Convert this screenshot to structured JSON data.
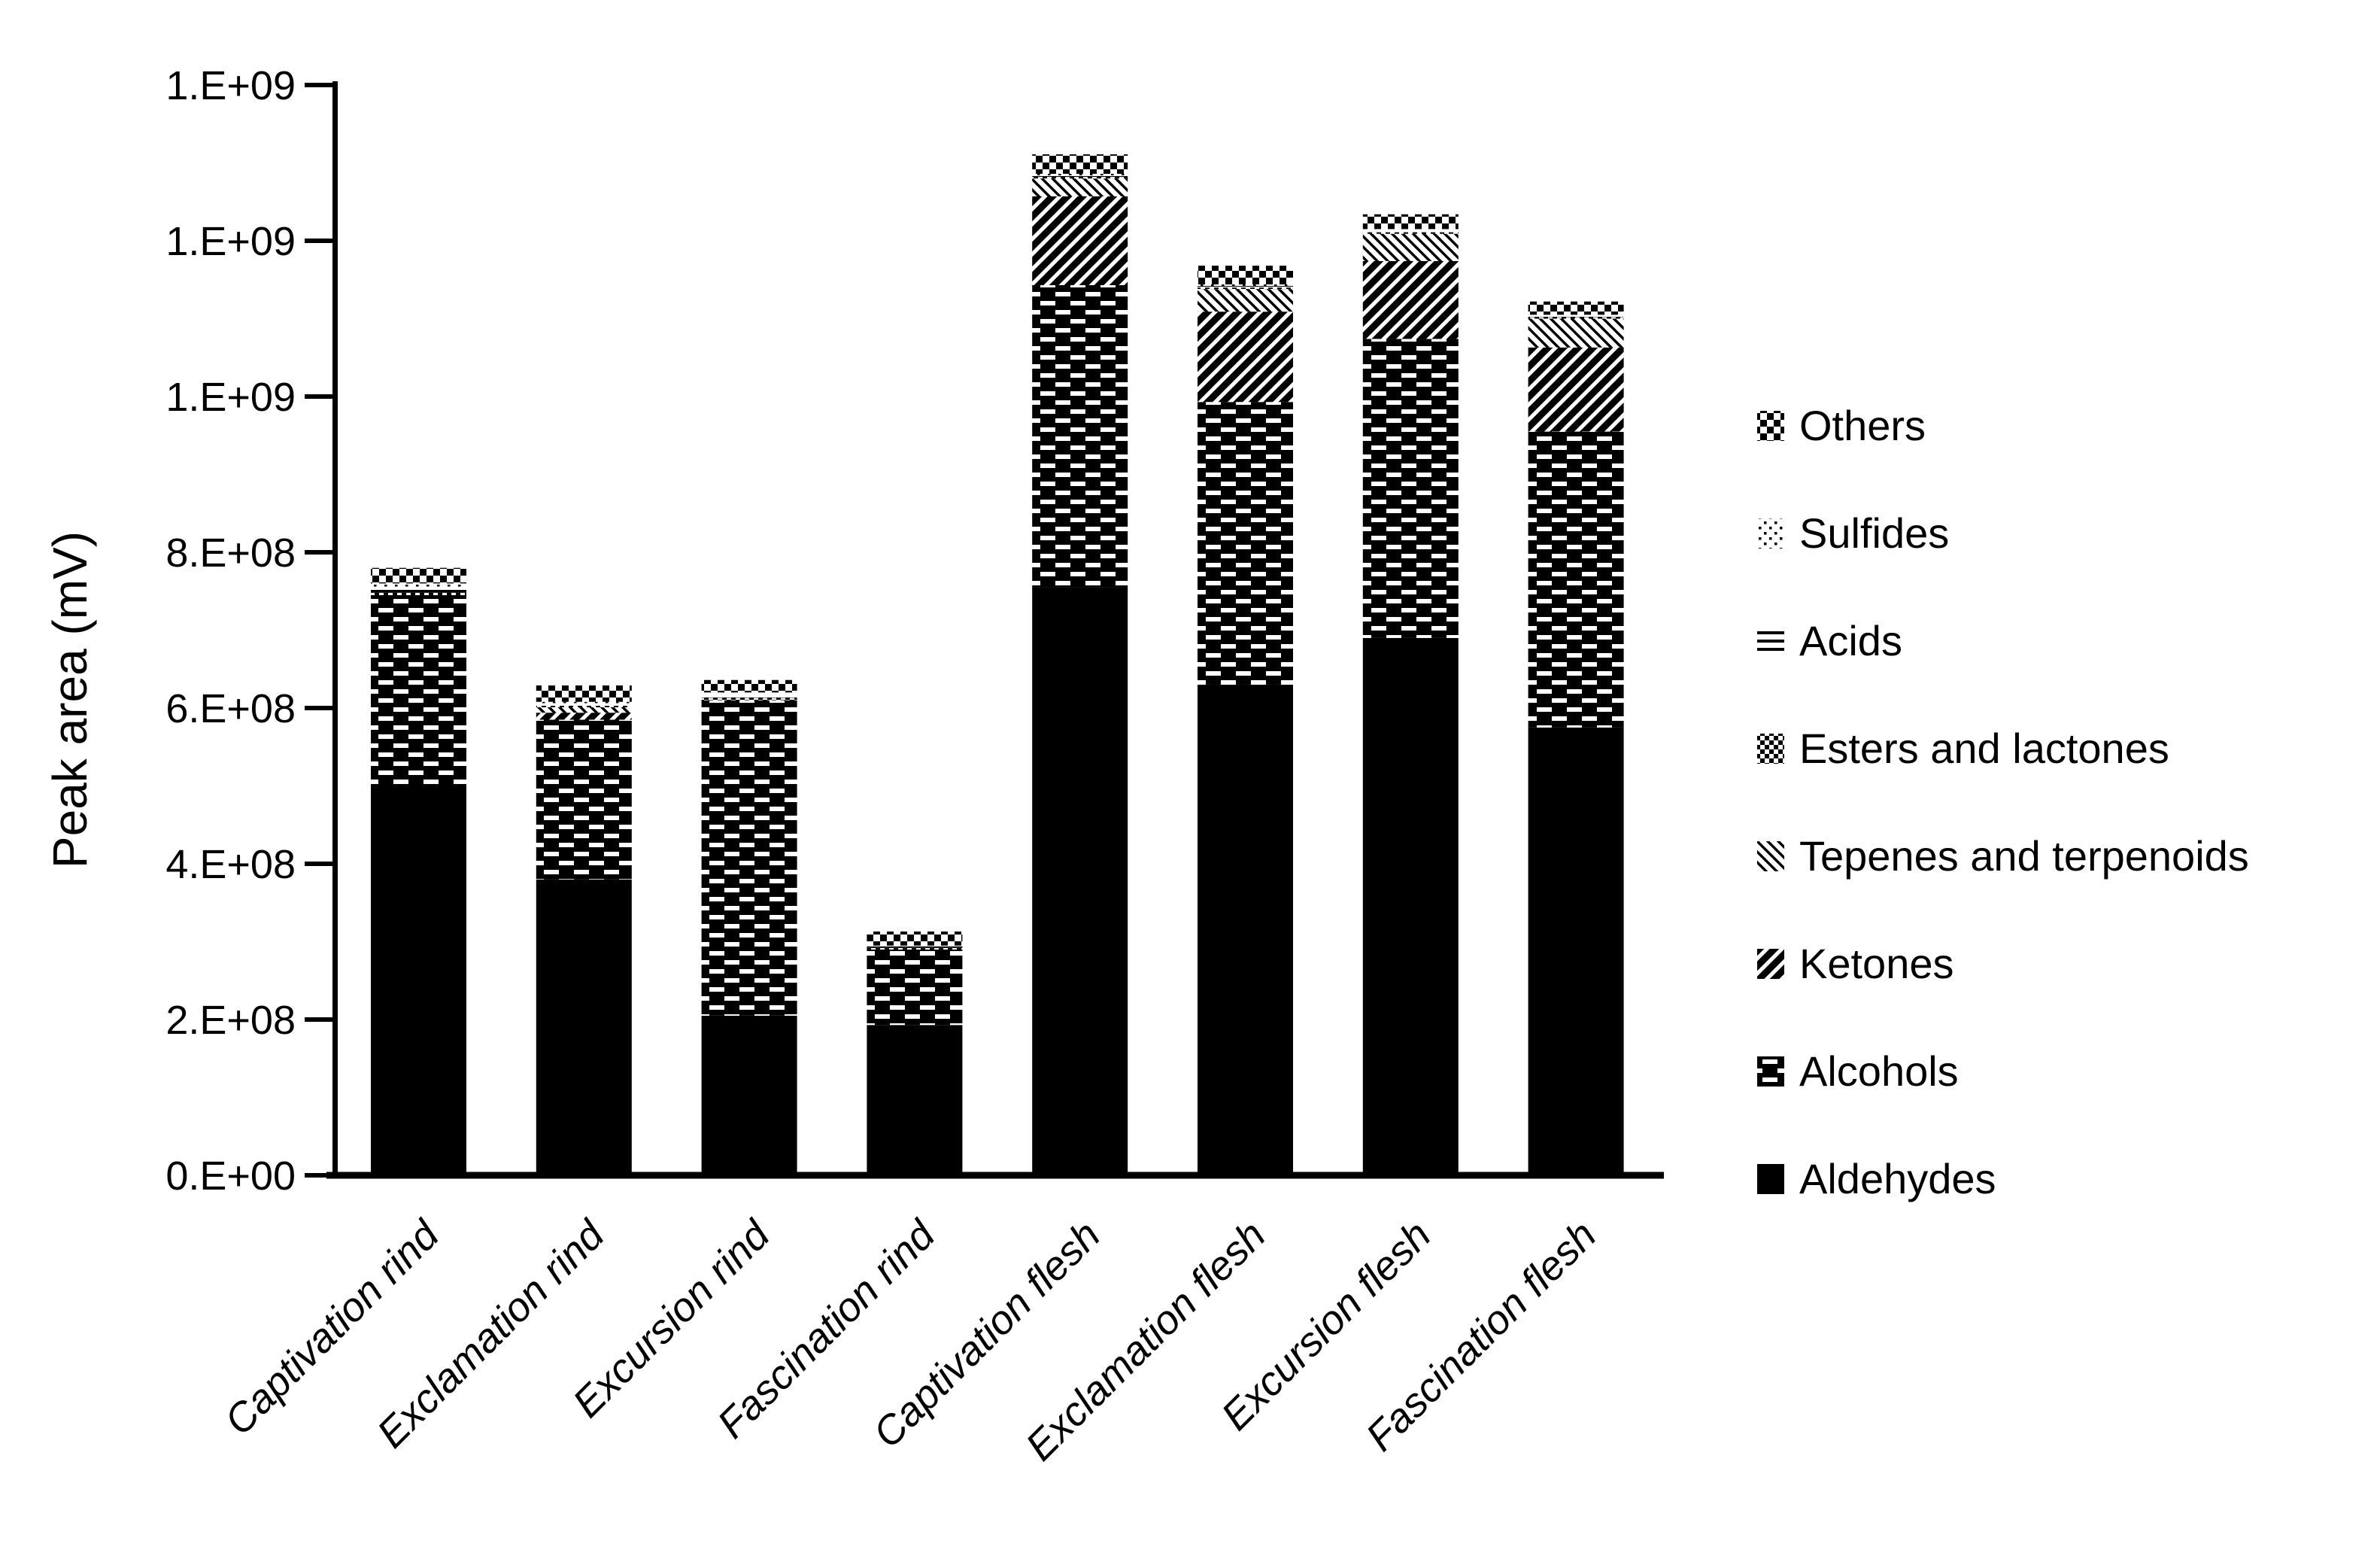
{
  "figure": {
    "background": "#ffffff",
    "ink": "#000000"
  },
  "y_axis": {
    "title": "Peak area (mV)",
    "tick_labels": [
      "0.E+00",
      "2.E+08",
      "4.E+08",
      "6.E+08",
      "8.E+08",
      "1.E+09",
      "1.E+09",
      "1.E+09"
    ],
    "tick_values": [
      0,
      200000000,
      400000000,
      600000000,
      800000000,
      1000000000,
      1200000000,
      1400000000
    ],
    "max": 1400000000
  },
  "chart_data": {
    "type": "bar",
    "subtype": "stacked",
    "grid": "off",
    "legend_position": "right",
    "ylim": [
      0,
      1400000000
    ],
    "title": "",
    "xlabel": "",
    "ylabel": "Peak area (mV)",
    "categories": [
      "Captivation rind",
      "Exclamation rind",
      "Excursion rind",
      "Fascination rind",
      "Captivation flesh",
      "Exclamation flesh",
      "Excursion flesh",
      "Fascination flesh"
    ],
    "series": [
      {
        "name": "Aldehydes",
        "pattern": "solid",
        "values": [
          500000000,
          380000000,
          205000000,
          193000000,
          755000000,
          630000000,
          690000000,
          575000000
        ]
      },
      {
        "name": "Alcohols",
        "pattern": "brick",
        "values": [
          245000000,
          205000000,
          405000000,
          97000000,
          388000000,
          363000000,
          384000000,
          380000000
        ]
      },
      {
        "name": "Ketones",
        "pattern": "diag-up",
        "values": [
          0,
          9000000,
          0,
          0,
          114000000,
          116000000,
          100000000,
          108000000
        ]
      },
      {
        "name": "Tepenes and terpenoids",
        "pattern": "diag-down",
        "values": [
          0,
          7000000,
          0,
          0,
          23000000,
          29000000,
          35000000,
          37000000
        ]
      },
      {
        "name": "Esters and lactones",
        "pattern": "checker-fine",
        "values": [
          3000000,
          2000000,
          3000000,
          2000000,
          2000000,
          2000000,
          2000000,
          2000000
        ]
      },
      {
        "name": "Acids",
        "pattern": "hlines",
        "values": [
          8000000,
          3000000,
          4000000,
          2000000,
          2000000,
          2000000,
          2000000,
          2000000
        ]
      },
      {
        "name": "Sulfides",
        "pattern": "dots",
        "values": [
          4000000,
          2000000,
          3000000,
          1000000,
          2000000,
          2000000,
          2000000,
          1000000
        ]
      },
      {
        "name": "Others",
        "pattern": "checker-coarse",
        "values": [
          20000000,
          21000000,
          16000000,
          18000000,
          25000000,
          24000000,
          19000000,
          17000000
        ]
      }
    ]
  }
}
